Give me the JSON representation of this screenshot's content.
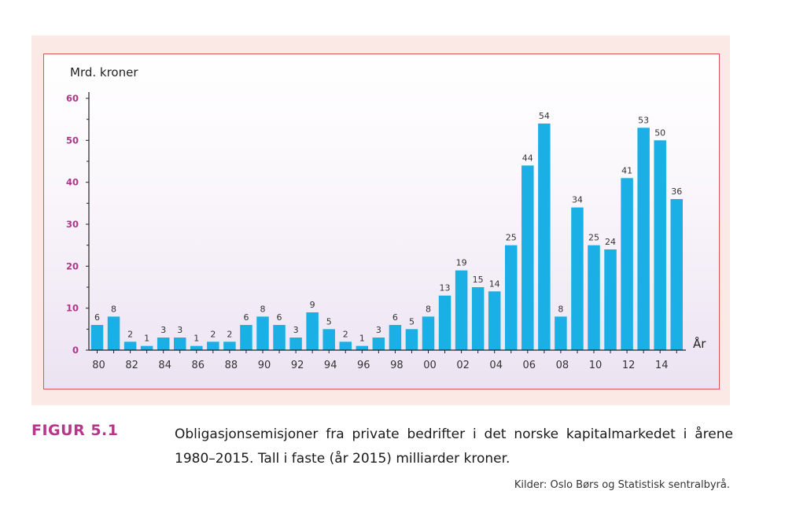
{
  "chart_data": {
    "type": "bar",
    "ylabel": "Mrd. kroner",
    "xlabel": "År",
    "ylim": [
      0,
      60
    ],
    "yticks": [
      "0",
      "10",
      "20",
      "30",
      "40",
      "50",
      "60"
    ],
    "x_tick_labels": [
      "80",
      "82",
      "84",
      "86",
      "88",
      "90",
      "92",
      "94",
      "96",
      "98",
      "00",
      "02",
      "04",
      "06",
      "08",
      "10",
      "12",
      "14"
    ],
    "categories": [
      "1980",
      "1981",
      "1982",
      "1983",
      "1984",
      "1985",
      "1986",
      "1987",
      "1988",
      "1989",
      "1990",
      "1991",
      "1992",
      "1993",
      "1994",
      "1995",
      "1996",
      "1997",
      "1998",
      "1999",
      "2000",
      "2001",
      "2002",
      "2003",
      "2004",
      "2005",
      "2006",
      "2007",
      "2008",
      "2009",
      "2010",
      "2011",
      "2012",
      "2013",
      "2014",
      "2015"
    ],
    "values": [
      6,
      8,
      2,
      1,
      3,
      3,
      1,
      2,
      2,
      6,
      8,
      6,
      3,
      9,
      5,
      2,
      1,
      3,
      6,
      5,
      8,
      13,
      19,
      15,
      14,
      25,
      44,
      54,
      8,
      34,
      25,
      24,
      41,
      53,
      50,
      36
    ],
    "bar_color": "#1ab0e6",
    "grid": false
  },
  "figure": {
    "label": "FIGUR 5.1",
    "caption": "Obligasjonsemisjoner fra private bedrifter i det norske kapitalmarkedet i årene 1980–2015. Tall i faste (år 2015) milliarder kroner.",
    "source": "Kilder: Oslo Børs og Statistisk sentralbyrå."
  },
  "colors": {
    "label_accent": "#b5368a",
    "frame_border": "#d9545c",
    "panel_bg": "#fbe9e6"
  }
}
